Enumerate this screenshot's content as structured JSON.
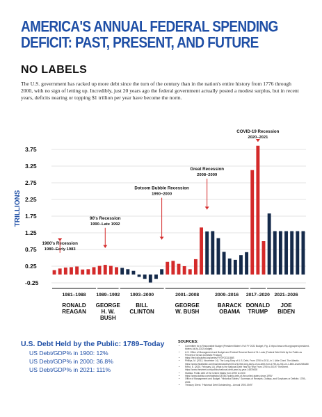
{
  "page": {
    "title": "AMERICA'S ANNUAL FEDERAL SPENDING DEFICIT: PAST, PRESENT, AND FUTURE",
    "subtitle": "NO LABELS",
    "intro": "The U.S. government has racked up more debt since the turn of the century than in the nation's entire history from 1776 through 2000, with no sign of letting up. Incredibly, just 20 years ago the federal government actually posted a modest surplus, but in recent years, deficits nearing or topping $1 trillion per year have become the norm.",
    "colors": {
      "blue": "#1f4fa6",
      "red": "#d42a2a",
      "navy": "#152a4a"
    }
  },
  "chart_data": {
    "type": "bar",
    "ylabel": "TRILLIONS",
    "yticks": [
      3.75,
      3.25,
      2.75,
      2.25,
      1.75,
      1.25,
      0.75,
      0.25,
      -0.25
    ],
    "ylim": [
      -0.25,
      3.9
    ],
    "grid": true,
    "series": [
      {
        "name": "deficit",
        "values": [
          0.13,
          0.18,
          0.21,
          0.22,
          0.24,
          0.15,
          0.16,
          0.22,
          0.26,
          0.29,
          0.26,
          0.22,
          0.2,
          0.16,
          0.11,
          -0.07,
          -0.13,
          -0.24,
          -0.13,
          0.16,
          0.38,
          0.41,
          0.32,
          0.25,
          0.16,
          0.46,
          1.41,
          1.29,
          1.3,
          1.09,
          0.68,
          0.48,
          0.44,
          0.58,
          0.67,
          3.13,
          3.86,
          1.0,
          1.83,
          1.3,
          1.3,
          1.3,
          1.3,
          1.3,
          1.3
        ]
      },
      {
        "name": "party",
        "values": [
          "R",
          "R",
          "R",
          "R",
          "R",
          "R",
          "R",
          "R",
          "R",
          "R",
          "R",
          "R",
          "D",
          "D",
          "D",
          "D",
          "D",
          "D",
          "D",
          "D",
          "R",
          "R",
          "R",
          "R",
          "R",
          "R",
          "R",
          "D",
          "D",
          "D",
          "D",
          "D",
          "D",
          "D",
          "D",
          "R",
          "R",
          "R",
          "D",
          "D",
          "D",
          "D",
          "D",
          "D",
          "D"
        ]
      }
    ],
    "periods": [
      {
        "label": "1981–1988",
        "start": 0,
        "end": 7
      },
      {
        "label": "1989–1992",
        "start": 8,
        "end": 11
      },
      {
        "label": "1993–2000",
        "start": 12,
        "end": 19
      },
      {
        "label": "2001–2008",
        "start": 20,
        "end": 27
      },
      {
        "label": "2009–2016",
        "start": 27,
        "end": 34
      },
      {
        "label": "2017–2020",
        "start": 35,
        "end": 37
      },
      {
        "label": "2021–2026",
        "start": 38,
        "end": 44
      }
    ],
    "presidents": [
      {
        "lines": [
          "RONALD",
          "REAGAN"
        ],
        "center": 3.5
      },
      {
        "lines": [
          "GEORGE",
          "H. W.",
          "BUSH"
        ],
        "center": 9.5
      },
      {
        "lines": [
          "BILL",
          "CLINTON"
        ],
        "center": 15.5
      },
      {
        "lines": [
          "GEORGE",
          "W. BUSH"
        ],
        "center": 23.5
      },
      {
        "lines": [
          "BARACK",
          "OBAMA"
        ],
        "center": 31
      },
      {
        "lines": [
          "DONALD",
          "TRUMP"
        ],
        "center": 36
      },
      {
        "lines": [
          "JOE",
          "BIDEN"
        ],
        "center": 41
      }
    ],
    "recessions": [
      {
        "lines": [
          "1900's Recession",
          "1980–Early 1983"
        ],
        "at": 1,
        "y": 0.9,
        "arrow_to": 1.0
      },
      {
        "lines": [
          "90's Recession",
          "1990–Late 1992"
        ],
        "at": 9,
        "y": 1.65,
        "arrow_to": 0.8
      },
      {
        "lines": [
          "Dotcom Bubble Recession",
          "1990–2000"
        ],
        "at": 19,
        "y": 2.55,
        "arrow_to": 1.05
      },
      {
        "lines": [
          "Great Recession",
          "2008–2009"
        ],
        "at": 27,
        "y": 3.12,
        "arrow_to": 1.95
      },
      {
        "lines": [
          "COVID-19 Recession",
          "2020–2021"
        ],
        "at": 36,
        "y": 4.25,
        "arrow_to": 3.98
      }
    ]
  },
  "debt": {
    "heading": "U.S. Debt Held by the Public: 1789–Today",
    "lines": [
      "US Debt/GDP% in 1900: 12%",
      "US Debt/GDP% in 2000: 36.8%",
      "US Debt/GDP% in 2021: 111%"
    ]
  },
  "sources": {
    "heading": "SOURCES:",
    "items": [
      "Committee for a Responsible Budget (President Biden's Full FY 2022 Budget, Fig. 1 https://www.crfb.org/papers/president-bidens-full-fy-2022-budget)",
      "U.S. Office of Management and Budget and Federal Reserve Bank of St. Louis (Federal Debt Held by the Public as Percent of Gross Domestic Product)",
      "https://fred.stlouisfed.org/series/FYGFGDQ188S",
      "Phillips, M. (2012, November 14). The Long Story of U.S. Debt, From 1790 to 2011, in 1 Little Chart. The Atlantic. https://www.theatlantic.com/business/archive/2012/11/the-long-story-of-us-debt-from-1790-to-2011-in-1-little-chart/265185/",
      "Reed, E. (2020, February 14). What is the National Debt Year By Year From 1790 to 2019? TheStreet. https://www.thestreet.com/politics/national-debt-year-by-year-14876008",
      "Statista. Public debt of the United States from 1990 to 2020",
      "https://www.statista.com/statistics/187867/public-debt-of-the-united-states-since-1990/",
      "Office of Management and Budget. \"Historical Tables,\" Summary of Receipts, Outlays, and Surpluses or Deficits: 1789–2026.",
      "Treasury Direct. \"Historical Debt Outstanding – Annual 1900-1949.\""
    ]
  }
}
